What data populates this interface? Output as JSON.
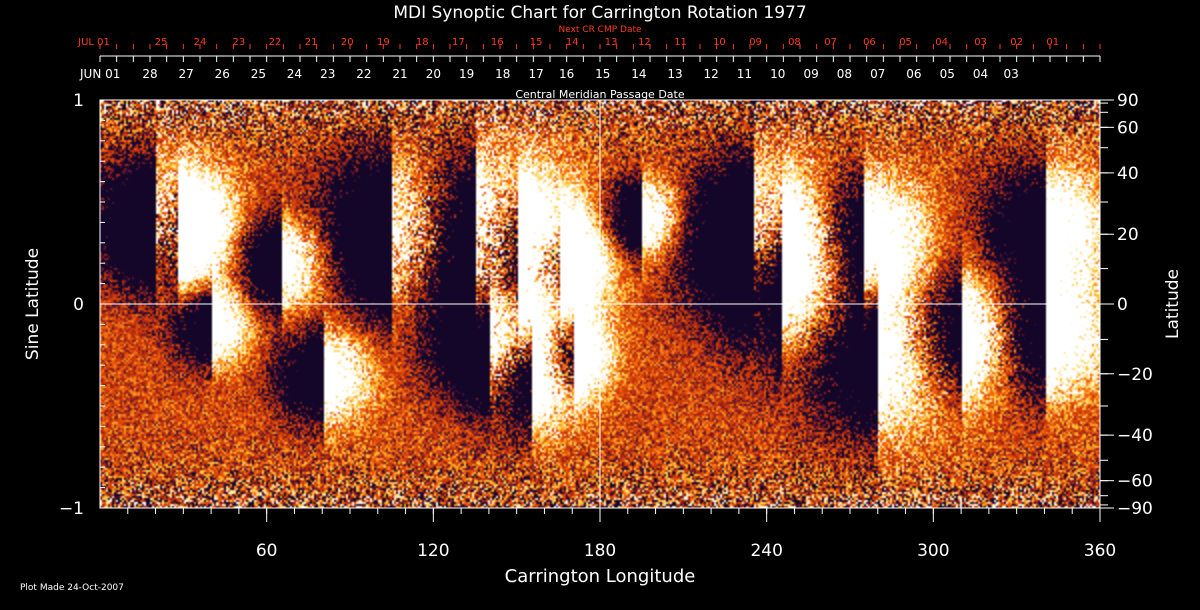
{
  "title": "MDI Synoptic Chart for Carrington Rotation 1977",
  "plot_made": "Plot Made 24-Oct-2007",
  "colors": {
    "background": "#000000",
    "axis": "#ffffff",
    "next_cr_text": "#ff3b1f",
    "field_low": "#1a0838",
    "field_mid": "#d24a08",
    "field_high": "#ffffff"
  },
  "chart_data": {
    "type": "heatmap",
    "title": "MDI Synoptic Chart for Carrington Rotation 1977",
    "xlabel": "Carrington Longitude",
    "ylabel_left": "Sine Latitude",
    "ylabel_right": "Latitude",
    "xlim": [
      0,
      360
    ],
    "ylim": [
      -1,
      1
    ],
    "x_ticks": [
      {
        "value": 60,
        "label": "60"
      },
      {
        "value": 120,
        "label": "120"
      },
      {
        "value": 180,
        "label": "180"
      },
      {
        "value": 240,
        "label": "240"
      },
      {
        "value": 300,
        "label": "300"
      },
      {
        "value": 360,
        "label": "360"
      }
    ],
    "y_ticks_left": [
      {
        "value": 1,
        "label": "1"
      },
      {
        "value": 0,
        "label": "0"
      },
      {
        "value": -1,
        "label": "−1"
      }
    ],
    "y_ticks_right": [
      {
        "lat": 90,
        "label": "90"
      },
      {
        "lat": 60,
        "label": "60"
      },
      {
        "lat": 40,
        "label": "40"
      },
      {
        "lat": 20,
        "label": "20"
      },
      {
        "lat": 0,
        "label": "0"
      },
      {
        "lat": -20,
        "label": "−20"
      },
      {
        "lat": -40,
        "label": "−40"
      },
      {
        "lat": -60,
        "label": "−60"
      },
      {
        "lat": -90,
        "label": "−90"
      }
    ],
    "cmp_axis_label": "Central Meridian Passage Date",
    "cmp_dates": [
      {
        "lon": 0,
        "label": "JUN 01"
      },
      {
        "lon": 18,
        "label": "28"
      },
      {
        "lon": 31,
        "label": "27"
      },
      {
        "lon": 44,
        "label": "26"
      },
      {
        "lon": 57,
        "label": "25"
      },
      {
        "lon": 70,
        "label": "24"
      },
      {
        "lon": 82,
        "label": "23"
      },
      {
        "lon": 95,
        "label": "22"
      },
      {
        "lon": 108,
        "label": "21"
      },
      {
        "lon": 120,
        "label": "20"
      },
      {
        "lon": 132,
        "label": "19"
      },
      {
        "lon": 145,
        "label": "18"
      },
      {
        "lon": 157,
        "label": "17"
      },
      {
        "lon": 168,
        "label": "16"
      },
      {
        "lon": 181,
        "label": "15"
      },
      {
        "lon": 194,
        "label": "14"
      },
      {
        "lon": 207,
        "label": "13"
      },
      {
        "lon": 220,
        "label": "12"
      },
      {
        "lon": 232,
        "label": "11"
      },
      {
        "lon": 244,
        "label": "10"
      },
      {
        "lon": 256,
        "label": "09"
      },
      {
        "lon": 268,
        "label": "08"
      },
      {
        "lon": 280,
        "label": "07"
      },
      {
        "lon": 293,
        "label": "06"
      },
      {
        "lon": 305,
        "label": "05"
      },
      {
        "lon": 317,
        "label": "04"
      },
      {
        "lon": 328,
        "label": "03"
      }
    ],
    "next_cr_label": "Next CR CMP Date",
    "next_cr_dates": [
      {
        "lon": 0,
        "label": "JUL 01"
      },
      {
        "lon": 22,
        "label": "25"
      },
      {
        "lon": 36,
        "label": "24"
      },
      {
        "lon": 50,
        "label": "23"
      },
      {
        "lon": 63,
        "label": "22"
      },
      {
        "lon": 76,
        "label": "21"
      },
      {
        "lon": 89,
        "label": "20"
      },
      {
        "lon": 102,
        "label": "19"
      },
      {
        "lon": 116,
        "label": "18"
      },
      {
        "lon": 129,
        "label": "17"
      },
      {
        "lon": 143,
        "label": "16"
      },
      {
        "lon": 157,
        "label": "15"
      },
      {
        "lon": 170,
        "label": "14"
      },
      {
        "lon": 184,
        "label": "13"
      },
      {
        "lon": 196,
        "label": "12"
      },
      {
        "lon": 209,
        "label": "11"
      },
      {
        "lon": 223,
        "label": "10"
      },
      {
        "lon": 236,
        "label": "09"
      },
      {
        "lon": 250,
        "label": "08"
      },
      {
        "lon": 263,
        "label": "07"
      },
      {
        "lon": 277,
        "label": "06"
      },
      {
        "lon": 290,
        "label": "05"
      },
      {
        "lon": 303,
        "label": "04"
      },
      {
        "lon": 317,
        "label": "03"
      },
      {
        "lon": 330,
        "label": "02"
      },
      {
        "lon": 343,
        "label": "01"
      }
    ],
    "guide_lines": {
      "vertical_lon": 180,
      "horizontal_sinlat": 0
    },
    "active_regions": [
      {
        "lon": 20,
        "sinlat": 0.42,
        "spread": 8
      },
      {
        "lon": 28,
        "sinlat": 0.35,
        "spread": 7
      },
      {
        "lon": 65,
        "sinlat": 0.2,
        "spread": 6
      },
      {
        "lon": 105,
        "sinlat": 0.35,
        "spread": 10
      },
      {
        "lon": 135,
        "sinlat": 0.3,
        "spread": 12
      },
      {
        "lon": 150,
        "sinlat": 0.25,
        "spread": 9
      },
      {
        "lon": 165,
        "sinlat": 0.2,
        "spread": 6
      },
      {
        "lon": 195,
        "sinlat": 0.43,
        "spread": 5
      },
      {
        "lon": 235,
        "sinlat": 0.38,
        "spread": 9
      },
      {
        "lon": 245,
        "sinlat": 0.15,
        "spread": 10
      },
      {
        "lon": 275,
        "sinlat": 0.33,
        "spread": 8
      },
      {
        "lon": 340,
        "sinlat": 0.38,
        "spread": 8
      },
      {
        "lon": 40,
        "sinlat": -0.1,
        "spread": 5
      },
      {
        "lon": 80,
        "sinlat": -0.35,
        "spread": 6
      },
      {
        "lon": 140,
        "sinlat": -0.2,
        "spread": 7
      },
      {
        "lon": 155,
        "sinlat": -0.35,
        "spread": 7
      },
      {
        "lon": 170,
        "sinlat": -0.25,
        "spread": 5
      },
      {
        "lon": 280,
        "sinlat": -0.25,
        "spread": 10
      },
      {
        "lon": 310,
        "sinlat": -0.15,
        "spread": 8
      },
      {
        "lon": 340,
        "sinlat": -0.15,
        "spread": 8
      }
    ]
  }
}
